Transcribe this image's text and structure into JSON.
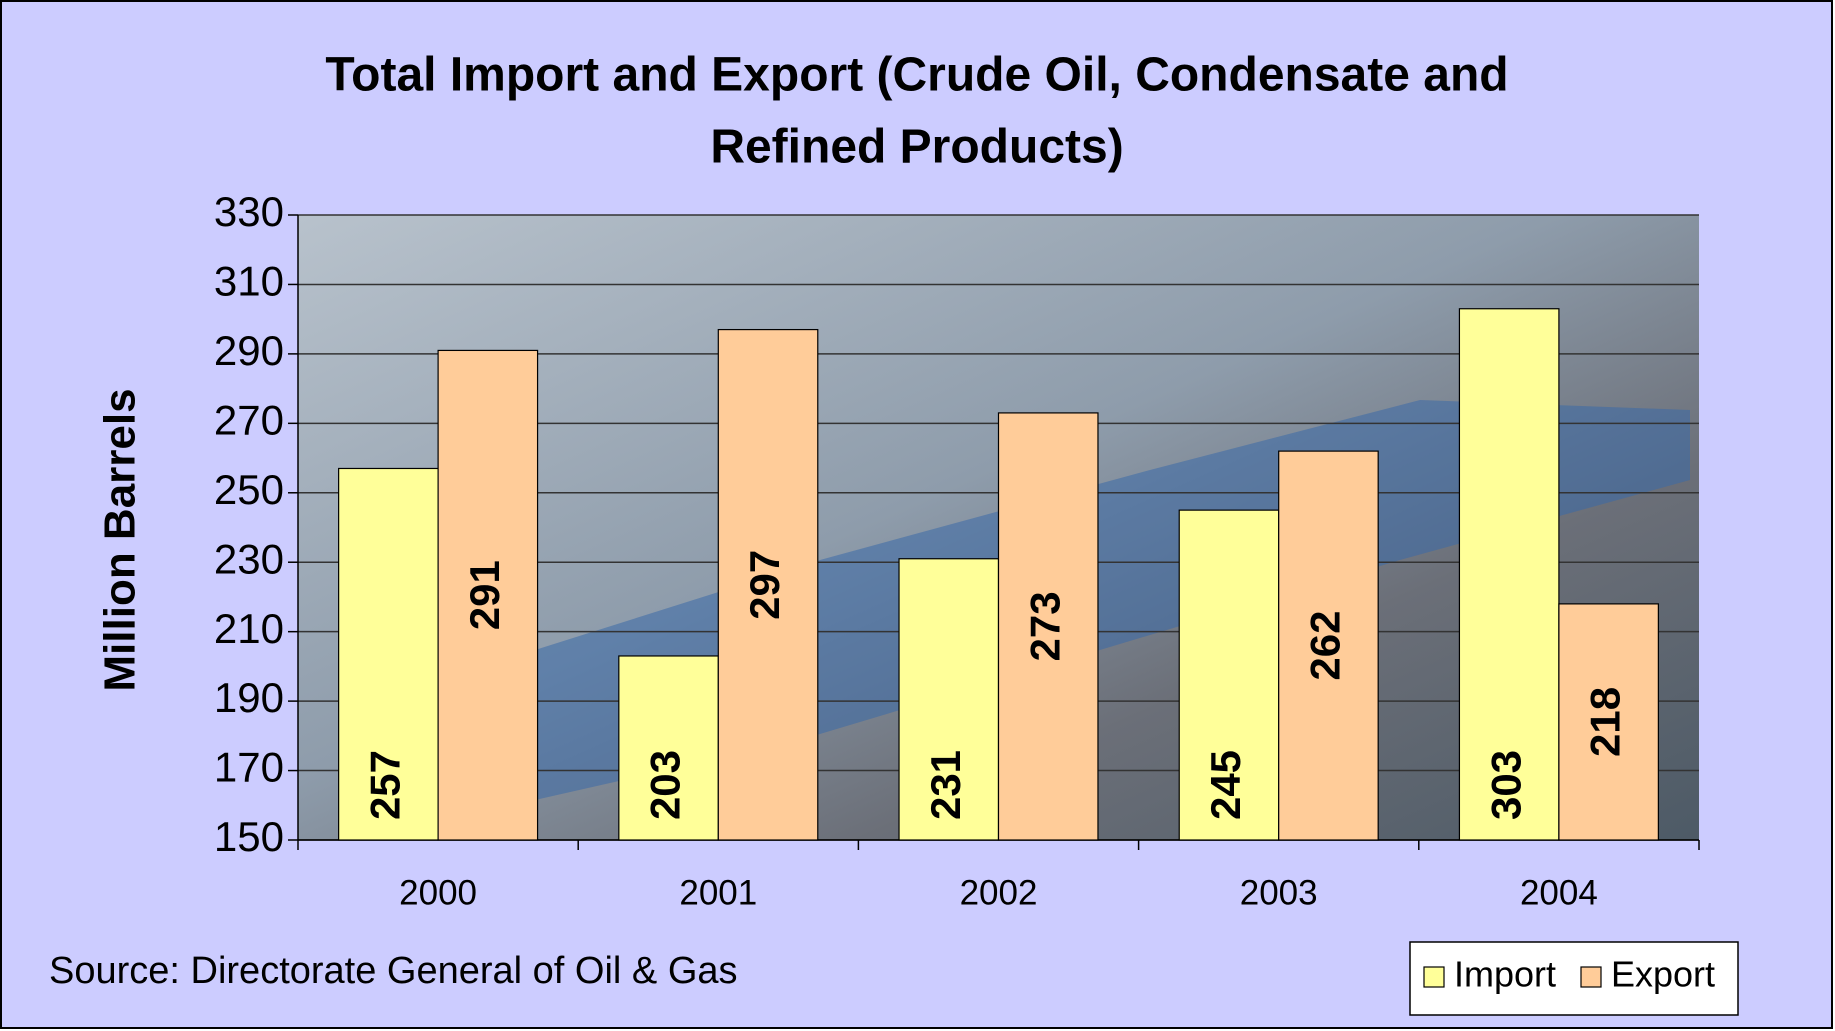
{
  "chart_data": {
    "type": "bar",
    "title": [
      "Total Import and Export (Crude Oil, Condensate and",
      "Refined Products)"
    ],
    "y_label": "Million Barrels",
    "source": "Source: Directorate General of Oil & Gas",
    "categories": [
      "2000",
      "2001",
      "2002",
      "2003",
      "2004"
    ],
    "series": [
      {
        "name": "Import",
        "color": "#ffff99",
        "values": [
          257,
          203,
          231,
          245,
          303
        ]
      },
      {
        "name": "Export",
        "color": "#ffcc99",
        "values": [
          291,
          297,
          273,
          262,
          218
        ]
      }
    ],
    "ylim": [
      150,
      330
    ],
    "yticks": [
      150,
      170,
      190,
      210,
      230,
      250,
      270,
      290,
      310,
      330
    ],
    "grid": true,
    "legend": "bottom-right"
  }
}
